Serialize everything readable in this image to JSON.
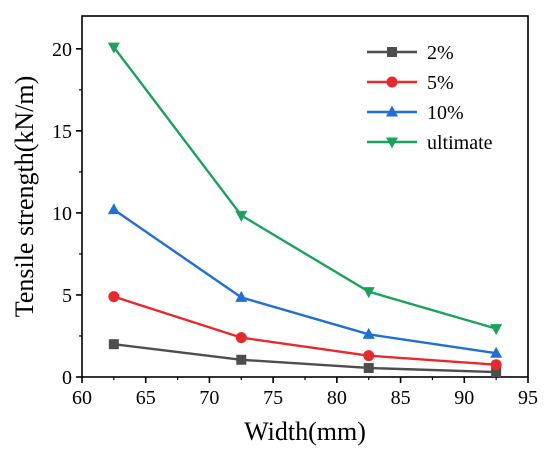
{
  "chart_data": {
    "type": "line",
    "title": "",
    "xlabel": "Width(mm)",
    "ylabel": "Tensile strength(kN/m)",
    "xlim": [
      60,
      95
    ],
    "ylim": [
      0,
      22
    ],
    "xticks": [
      60,
      65,
      70,
      75,
      80,
      85,
      90,
      95
    ],
    "yticks": [
      0,
      5,
      10,
      15,
      20
    ],
    "grid": false,
    "legend_position": "top-right",
    "x": [
      62.5,
      72.5,
      82.5,
      92.5
    ],
    "series": [
      {
        "name": "2%",
        "color": "#4d4d4d",
        "marker": "square",
        "values": [
          2.0,
          1.05,
          0.55,
          0.3
        ]
      },
      {
        "name": "5%",
        "color": "#e8292b",
        "marker": "circle",
        "values": [
          4.9,
          2.4,
          1.3,
          0.75
        ]
      },
      {
        "name": "10%",
        "color": "#1f6fd6",
        "marker": "triangle-up",
        "values": [
          10.2,
          4.85,
          2.6,
          1.45
        ]
      },
      {
        "name": "ultimate",
        "color": "#1aa35a",
        "marker": "triangle-down",
        "values": [
          20.1,
          9.85,
          5.2,
          2.95
        ]
      }
    ]
  }
}
